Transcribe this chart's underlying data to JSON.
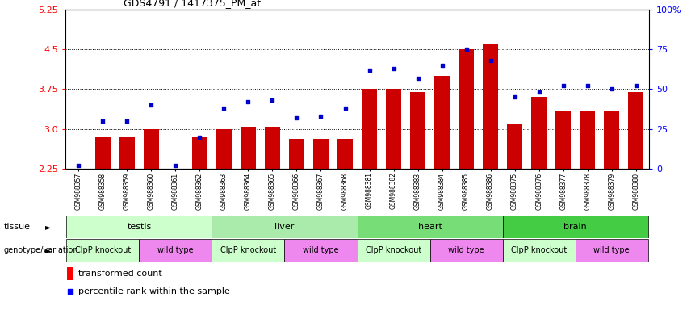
{
  "title": "GDS4791 / 1417375_PM_at",
  "samples": [
    "GSM988357",
    "GSM988358",
    "GSM988359",
    "GSM988360",
    "GSM988361",
    "GSM988362",
    "GSM988363",
    "GSM988364",
    "GSM988365",
    "GSM988366",
    "GSM988367",
    "GSM988368",
    "GSM988381",
    "GSM988382",
    "GSM988383",
    "GSM988384",
    "GSM988385",
    "GSM988386",
    "GSM988375",
    "GSM988376",
    "GSM988377",
    "GSM988378",
    "GSM988379",
    "GSM988380"
  ],
  "bar_values": [
    2.25,
    2.85,
    2.85,
    3.0,
    2.25,
    2.85,
    3.0,
    3.05,
    3.05,
    2.82,
    2.82,
    2.82,
    3.75,
    3.75,
    3.7,
    4.0,
    4.5,
    4.6,
    3.1,
    3.6,
    3.35,
    3.35,
    3.35,
    3.7
  ],
  "dot_values_pct": [
    2,
    30,
    30,
    40,
    2,
    20,
    38,
    42,
    43,
    32,
    33,
    38,
    62,
    63,
    57,
    65,
    75,
    68,
    45,
    48,
    52,
    52,
    50,
    52
  ],
  "tissues": [
    {
      "label": "testis",
      "start": 0,
      "end": 6,
      "color": "#ccffcc"
    },
    {
      "label": "liver",
      "start": 6,
      "end": 12,
      "color": "#aaeaaa"
    },
    {
      "label": "heart",
      "start": 12,
      "end": 18,
      "color": "#77dd77"
    },
    {
      "label": "brain",
      "start": 18,
      "end": 24,
      "color": "#44cc44"
    }
  ],
  "genotypes": [
    {
      "label": "ClpP knockout",
      "start": 0,
      "end": 3,
      "color": "#ccffcc"
    },
    {
      "label": "wild type",
      "start": 3,
      "end": 6,
      "color": "#ee88ee"
    },
    {
      "label": "ClpP knockout",
      "start": 6,
      "end": 9,
      "color": "#ccffcc"
    },
    {
      "label": "wild type",
      "start": 9,
      "end": 12,
      "color": "#ee88ee"
    },
    {
      "label": "ClpP knockout",
      "start": 12,
      "end": 15,
      "color": "#ccffcc"
    },
    {
      "label": "wild type",
      "start": 15,
      "end": 18,
      "color": "#ee88ee"
    },
    {
      "label": "ClpP knockout",
      "start": 18,
      "end": 21,
      "color": "#ccffcc"
    },
    {
      "label": "wild type",
      "start": 21,
      "end": 24,
      "color": "#ee88ee"
    }
  ],
  "ylim_left": [
    2.25,
    5.25
  ],
  "yticks_left": [
    2.25,
    3.0,
    3.75,
    4.5,
    5.25
  ],
  "ylim_right": [
    0,
    100
  ],
  "yticks_right": [
    0,
    25,
    50,
    75,
    100
  ],
  "bar_color": "#cc0000",
  "dot_color": "#0000cc",
  "bar_bottom": 2.25,
  "hlines": [
    3.0,
    3.75,
    4.5
  ],
  "legend_bar_label": "transformed count",
  "legend_dot_label": "percentile rank within the sample"
}
